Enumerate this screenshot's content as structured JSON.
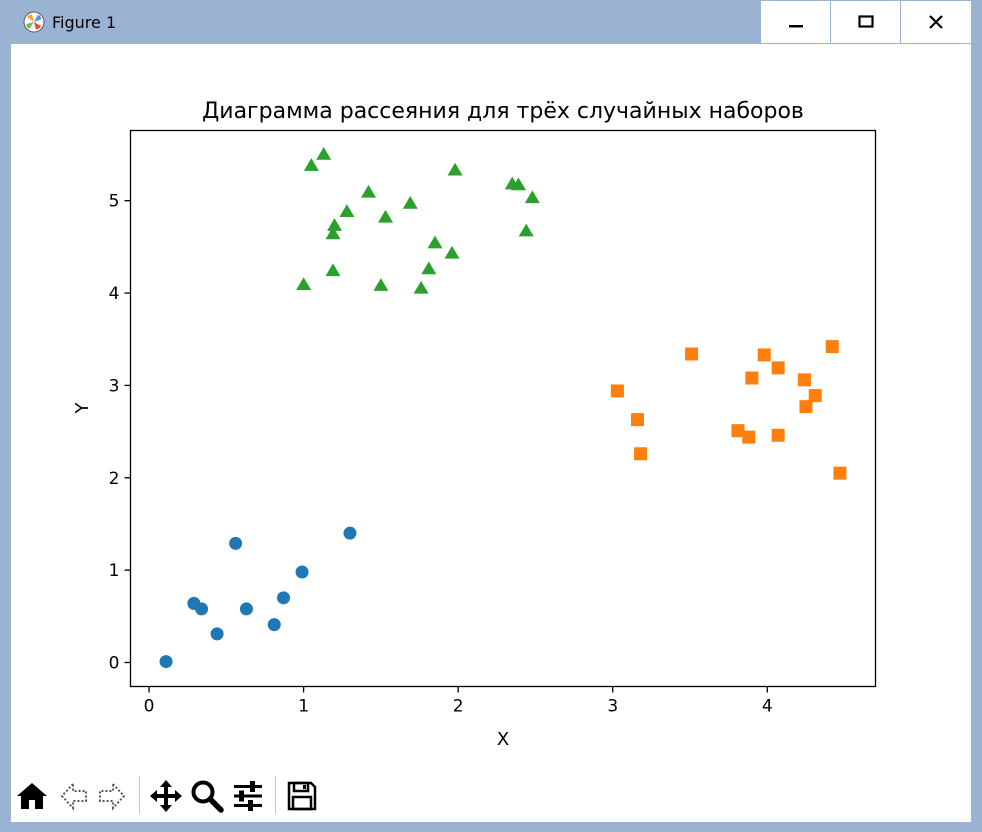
{
  "window": {
    "title": "Figure 1",
    "minimize_icon": "minimize-icon",
    "maximize_icon": "maximize-icon",
    "close_icon": "close-icon"
  },
  "toolbar": {
    "buttons": [
      "home-icon",
      "back-arrow-icon",
      "forward-arrow-icon",
      "pan-icon",
      "zoom-icon",
      "configure-subplots-icon",
      "save-icon"
    ]
  },
  "chart_data": {
    "type": "scatter",
    "title": "Диаграмма рассеяния для трёх случайных наборов",
    "xlabel": "X",
    "ylabel": "Y",
    "xlim": [
      -0.12,
      4.7
    ],
    "ylim": [
      -0.26,
      5.76
    ],
    "xticks": [
      0,
      1,
      2,
      3,
      4
    ],
    "yticks": [
      0,
      1,
      2,
      3,
      4,
      5
    ],
    "grid": false,
    "series": [
      {
        "marker": "circle",
        "color": "#1f77b4",
        "points": [
          [
            0.11,
            0.01
          ],
          [
            0.29,
            0.64
          ],
          [
            0.34,
            0.58
          ],
          [
            0.44,
            0.31
          ],
          [
            0.56,
            1.29
          ],
          [
            0.63,
            0.58
          ],
          [
            0.81,
            0.41
          ],
          [
            0.87,
            0.7
          ],
          [
            0.99,
            0.98
          ],
          [
            1.3,
            1.4
          ]
        ]
      },
      {
        "marker": "square",
        "color": "#ff7f0e",
        "points": [
          [
            3.03,
            2.94
          ],
          [
            3.16,
            2.63
          ],
          [
            3.18,
            2.26
          ],
          [
            3.51,
            3.34
          ],
          [
            3.81,
            2.51
          ],
          [
            3.88,
            2.44
          ],
          [
            3.9,
            3.08
          ],
          [
            3.98,
            3.33
          ],
          [
            4.07,
            3.19
          ],
          [
            4.07,
            2.46
          ],
          [
            4.24,
            3.06
          ],
          [
            4.25,
            2.77
          ],
          [
            4.31,
            2.89
          ],
          [
            4.42,
            3.42
          ],
          [
            4.47,
            2.05
          ]
        ]
      },
      {
        "marker": "triangle",
        "color": "#2ca02c",
        "points": [
          [
            1.0,
            4.09
          ],
          [
            1.05,
            5.38
          ],
          [
            1.13,
            5.5
          ],
          [
            1.19,
            4.64
          ],
          [
            1.2,
            4.73
          ],
          [
            1.19,
            4.24
          ],
          [
            1.28,
            4.88
          ],
          [
            1.42,
            5.09
          ],
          [
            1.5,
            4.08
          ],
          [
            1.53,
            4.82
          ],
          [
            1.69,
            4.97
          ],
          [
            1.76,
            4.05
          ],
          [
            1.81,
            4.26
          ],
          [
            1.85,
            4.54
          ],
          [
            1.96,
            4.43
          ],
          [
            1.98,
            5.33
          ],
          [
            2.35,
            5.18
          ],
          [
            2.39,
            5.17
          ],
          [
            2.44,
            4.67
          ],
          [
            2.48,
            5.03
          ]
        ]
      }
    ]
  }
}
